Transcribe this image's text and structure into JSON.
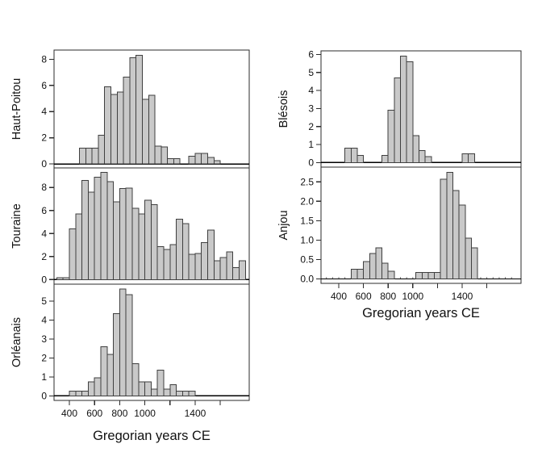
{
  "figure": {
    "xlabel_left": "Gregorian years CE",
    "xlabel_right": "Gregorian years CE",
    "x_ticks": [
      400,
      600,
      800,
      1000,
      1200,
      1400,
      1600
    ],
    "x_tick_labels": [
      "400",
      "600",
      "800",
      "1000",
      "",
      "1400",
      ""
    ],
    "bin_width_years": 50,
    "colors": {
      "bar_fill": "#c9c9c9",
      "bar_stroke": "#3f3f3f",
      "frame": "#2b2b2b",
      "baseline": "#000000",
      "text": "#111111"
    }
  },
  "chart_data": [
    {
      "id": "haut-poitou",
      "type": "bar",
      "ylabel": "Haut-Poitou",
      "column": "left",
      "row": 0,
      "show_xaxis": false,
      "ylim": [
        -0.3,
        8.7
      ],
      "ytick_values": [
        0,
        2,
        4,
        6,
        8
      ],
      "ytick_labels": [
        "0",
        "2",
        "4",
        "6",
        "8"
      ],
      "series": [
        {
          "start_year": 480,
          "heights": [
            1.2,
            1.2,
            1.2,
            2.2,
            5.9,
            5.3,
            5.5,
            6.65,
            8.1,
            8.3,
            4.95,
            5.25,
            1.35,
            1.3,
            0.4,
            0.4
          ]
        },
        {
          "start_year": 1350,
          "heights": [
            0.6,
            0.8,
            0.8,
            0.5,
            0.25
          ]
        }
      ]
    },
    {
      "id": "touraine",
      "type": "bar",
      "ylabel": "Touraine",
      "column": "left",
      "row": 1,
      "show_xaxis": false,
      "ylim": [
        -0.4,
        9.7
      ],
      "ytick_values": [
        0,
        2,
        4,
        6,
        8
      ],
      "ytick_labels": [
        "0",
        "2",
        "4",
        "6",
        "8"
      ],
      "series": [
        {
          "start_year": 300,
          "heights": [
            0.15,
            0.15,
            4.4,
            5.7,
            8.6,
            7.6,
            8.9,
            9.3,
            8.5,
            6.75,
            7.9,
            7.95,
            6.2,
            5.7,
            6.9,
            6.5,
            2.85,
            2.6,
            3.05,
            5.25,
            4.85,
            2.2,
            2.25,
            3.2,
            4.3,
            1.65,
            1.9,
            2.4,
            1.05,
            1.65
          ]
        }
      ]
    },
    {
      "id": "orleanais",
      "type": "bar",
      "ylabel": "Orléanais",
      "column": "left",
      "row": 2,
      "show_xaxis": true,
      "ylim": [
        -0.24,
        5.9
      ],
      "ytick_values": [
        0,
        1,
        2,
        3,
        4,
        5
      ],
      "ytick_labels": [
        "0",
        "1",
        "2",
        "3",
        "4",
        "5"
      ],
      "series": [
        {
          "start_year": 400,
          "heights": [
            0.25,
            0.25,
            0.25,
            0.75,
            0.95,
            2.6,
            2.2,
            4.35,
            5.65,
            5.35,
            1.7,
            0.75,
            0.75,
            0.35,
            1.35,
            0.35,
            0.6,
            0.25,
            0.25,
            0.25
          ]
        }
      ]
    },
    {
      "id": "blesois",
      "type": "bar",
      "ylabel": "Blésois",
      "column": "right",
      "row": 0,
      "show_xaxis": false,
      "ylim": [
        -0.25,
        6.2
      ],
      "ytick_values": [
        0,
        1,
        2,
        3,
        4,
        5,
        6
      ],
      "ytick_labels": [
        "0",
        "1",
        "2",
        "3",
        "4",
        "5",
        "6"
      ],
      "series": [
        {
          "start_year": 450,
          "heights": [
            0.8,
            0.8,
            0.4
          ]
        },
        {
          "start_year": 750,
          "heights": [
            0.4,
            2.9,
            4.7,
            5.9,
            5.6,
            1.5,
            0.67,
            0.33
          ]
        },
        {
          "start_year": 1400,
          "heights": [
            0.5,
            0.5
          ]
        }
      ]
    },
    {
      "id": "anjou",
      "type": "bar",
      "ylabel": "Anjou",
      "column": "right",
      "row": 1,
      "show_xaxis": true,
      "zero_line_ticks": true,
      "ylim": [
        -0.115,
        2.88
      ],
      "ytick_values": [
        0,
        0.5,
        1,
        1.5,
        2,
        2.5
      ],
      "ytick_labels": [
        "0.0",
        "0.5",
        "1.0",
        "1.5",
        "2.0",
        "2.5"
      ],
      "series": [
        {
          "start_year": 500,
          "heights": [
            0.25,
            0.25,
            0.45,
            0.65,
            0.8,
            0.4,
            0.2
          ]
        },
        {
          "start_year": 1025,
          "heights": [
            0.17,
            0.17,
            0.17,
            0.17
          ]
        },
        {
          "start_year": 1225,
          "heights": [
            2.57,
            2.75,
            2.28,
            1.9,
            1.05,
            0.8
          ]
        }
      ]
    }
  ]
}
